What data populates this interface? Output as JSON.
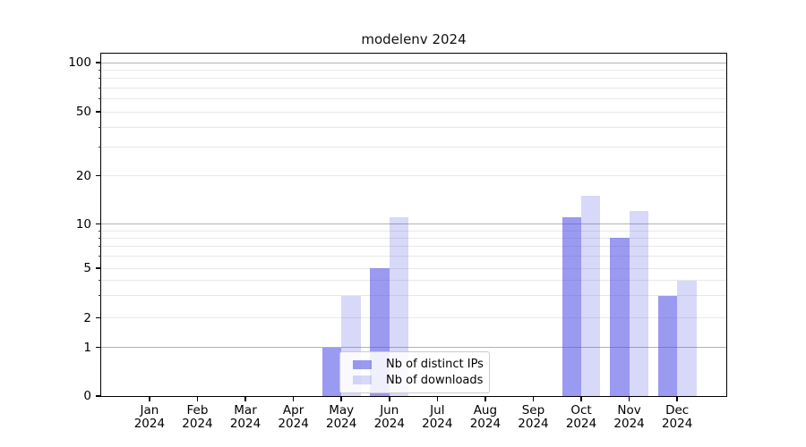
{
  "chart_data": {
    "type": "bar",
    "title": "modelenv 2024",
    "categories": [
      "Jan 2024",
      "Feb 2024",
      "Mar 2024",
      "Apr 2024",
      "May 2024",
      "Jun 2024",
      "Jul 2024",
      "Aug 2024",
      "Sep 2024",
      "Oct 2024",
      "Nov 2024",
      "Dec 2024"
    ],
    "series": [
      {
        "name": "Nb of distinct IPs",
        "color": "#4747e4",
        "alpha": 0.55,
        "values": [
          0,
          0,
          0,
          0,
          1,
          5,
          0,
          0,
          0,
          11,
          8,
          3
        ]
      },
      {
        "name": "Nb of downloads",
        "color": "#4747e4",
        "alpha": 0.21,
        "values": [
          0,
          0,
          0,
          0,
          3,
          11,
          0,
          0,
          0,
          15,
          12,
          4
        ]
      }
    ],
    "y_axis": {
      "scale": "log-like",
      "tick_labels": [
        "0",
        "1",
        "2",
        "5",
        "10",
        "20",
        "50",
        "100"
      ],
      "major_gridlines": [
        1,
        10,
        100
      ],
      "minor_gridlines": [
        2,
        3,
        4,
        5,
        6,
        7,
        8,
        9,
        20,
        30,
        40,
        50,
        60,
        70,
        80,
        90
      ],
      "ylim": [
        0,
        113
      ]
    },
    "legend": {
      "location": "lower center"
    },
    "grid": "both"
  }
}
